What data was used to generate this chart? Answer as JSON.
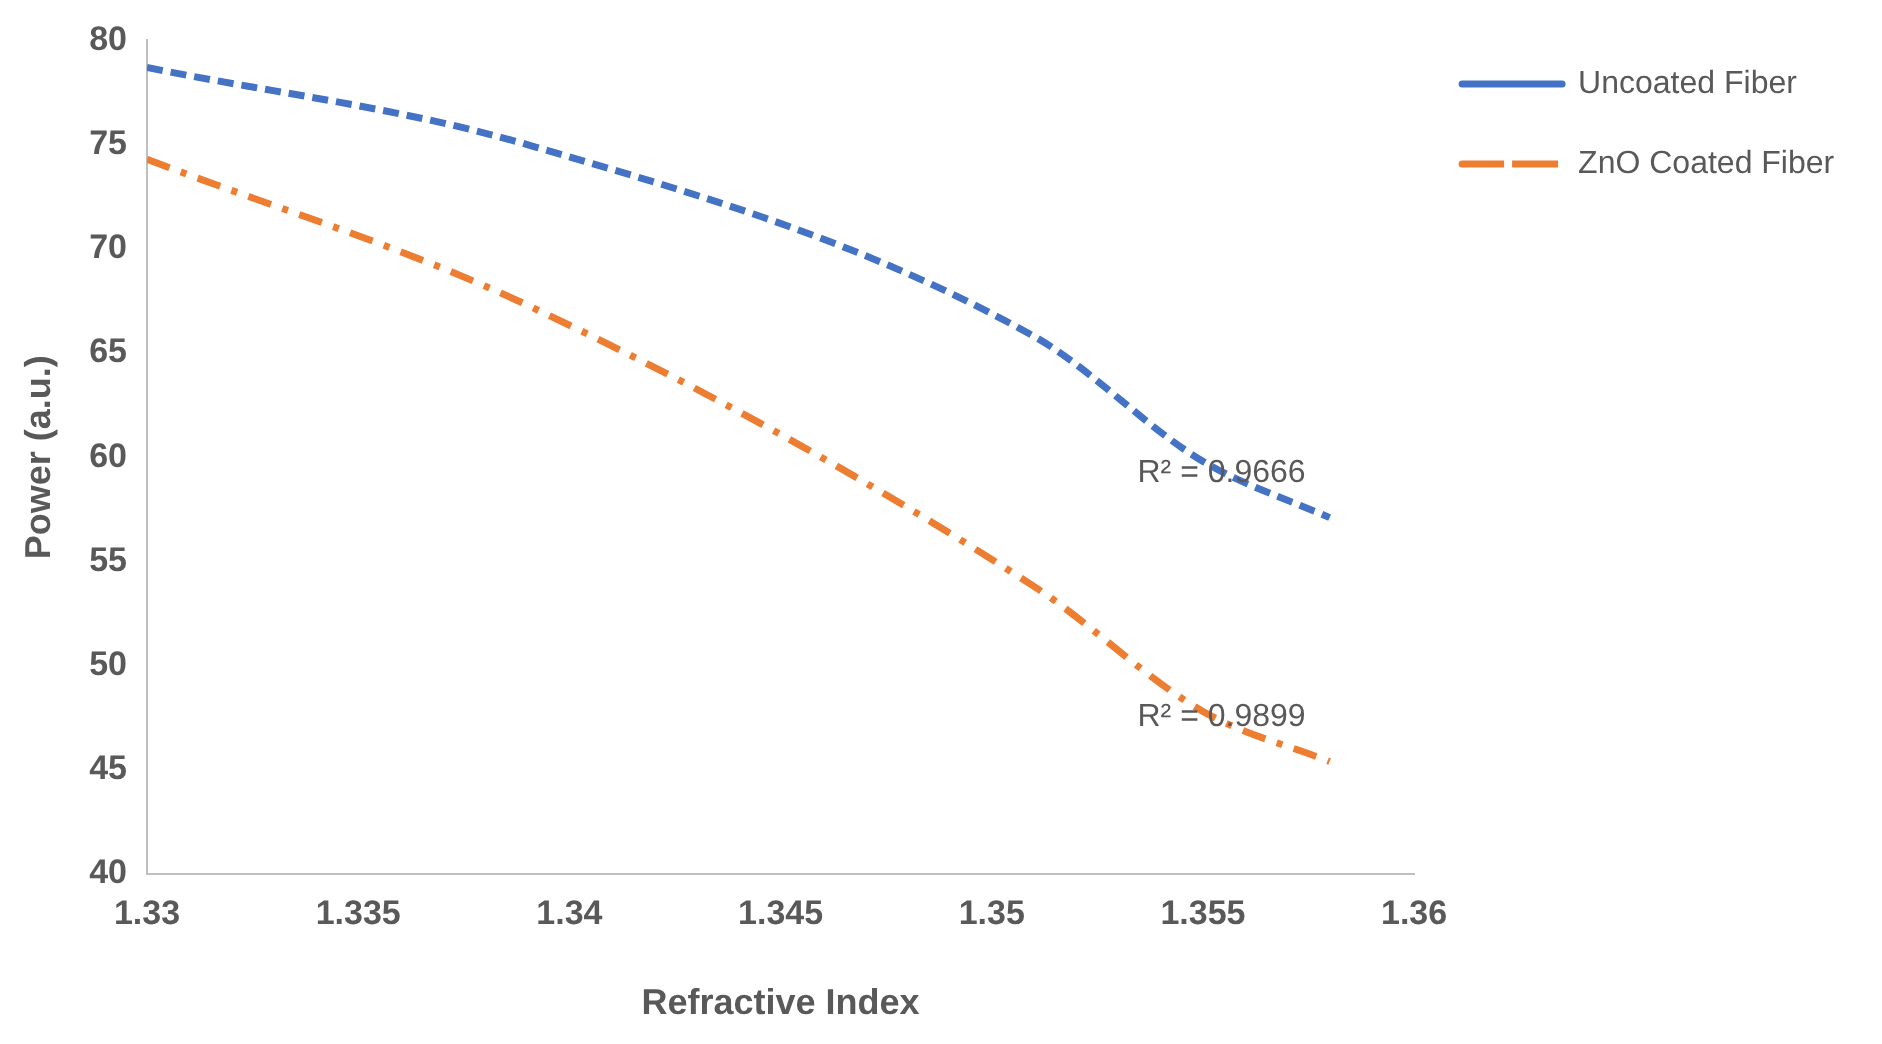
{
  "chart_data": {
    "type": "line",
    "xlabel": "Refractive Index",
    "ylabel": "Power (a.u.)",
    "xlim": [
      1.33,
      1.36
    ],
    "xticks": [
      1.33,
      1.335,
      1.34,
      1.345,
      1.35,
      1.355,
      1.36
    ],
    "ylim": [
      40,
      80
    ],
    "yticks": [
      40,
      45,
      50,
      55,
      60,
      65,
      70,
      75,
      80
    ],
    "grid": false,
    "legend": "top right",
    "marker": "none",
    "series": [
      {
        "name": "Uncoated Fiber",
        "color": "#4472c4",
        "line_style": "dashed",
        "x": [
          1.33,
          1.339,
          1.351,
          1.355,
          1.358
        ],
        "values": [
          78.7,
          75,
          65.8,
          59.8,
          57.1
        ]
      },
      {
        "name": "ZnO Coated Fiber",
        "color": "#ed7d31",
        "line_style": "dashdot",
        "x": [
          1.33,
          1.339,
          1.351,
          1.355,
          1.358
        ],
        "values": [
          74.3,
          67.3,
          53.8,
          47.8,
          45.4
        ]
      }
    ],
    "annotations": [
      "R² = 0.9666",
      "R² = 0.9899"
    ]
  }
}
